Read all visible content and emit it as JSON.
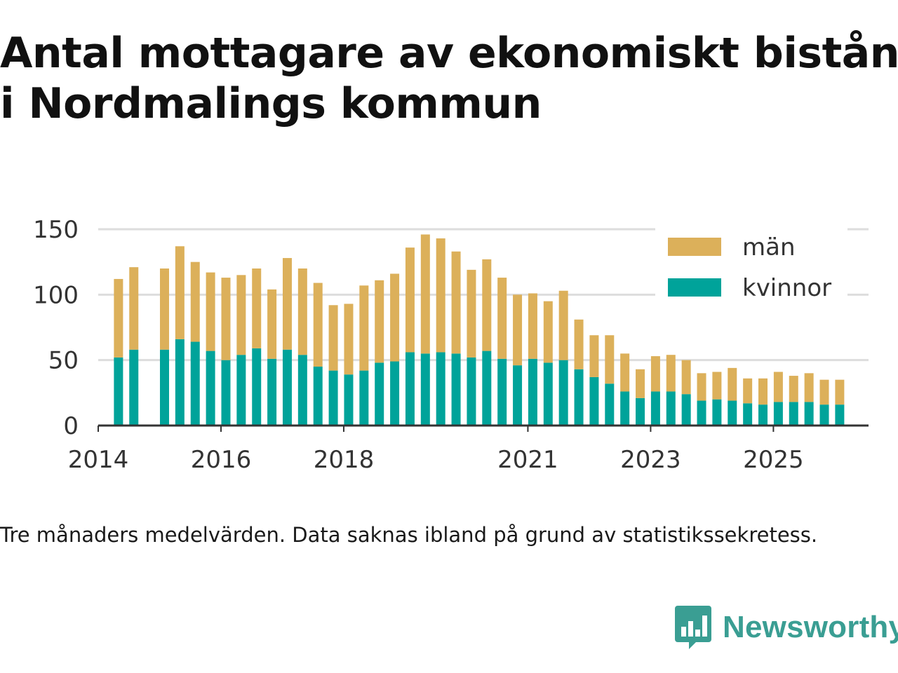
{
  "title": {
    "line1": "Antal mottagare av ekonomiskt bistånd",
    "line2": "i Nordmalings kommun"
  },
  "note": "Tre månaders medelvärden. Data saknas ibland på grund av statistikssekretess.",
  "brand": {
    "name": "Newsworthy",
    "icon": "newsworthy-logo-icon",
    "color": "#3a9e93"
  },
  "colors": {
    "men": "#dcb05a",
    "women": "#00a39a",
    "grid": "#dddddd",
    "axis": "#333333"
  },
  "chart_data": {
    "type": "bar",
    "stacked": true,
    "title": "Antal mottagare av ekonomiskt bistånd i Nordmalings kommun",
    "xlabel": "",
    "ylabel": "",
    "ylim": [
      0,
      150
    ],
    "yticks": [
      0,
      50,
      100,
      150
    ],
    "xlim": [
      2014.0,
      2026.55
    ],
    "xticks": [
      {
        "value": 2014,
        "label": "2014"
      },
      {
        "value": 2016,
        "label": "2016"
      },
      {
        "value": 2018,
        "label": "2018"
      },
      {
        "value": 2021,
        "label": "2021"
      },
      {
        "value": 2023,
        "label": "2023"
      },
      {
        "value": 2025,
        "label": "2025"
      }
    ],
    "grid": true,
    "legend": {
      "position": "top-right",
      "entries": [
        "män",
        "kvinnor"
      ]
    },
    "x": [
      2014.33,
      2014.58,
      2015.08,
      2015.33,
      2015.58,
      2015.83,
      2016.08,
      2016.33,
      2016.58,
      2016.83,
      2017.08,
      2017.33,
      2017.58,
      2017.83,
      2018.08,
      2018.33,
      2018.58,
      2018.83,
      2019.08,
      2019.33,
      2019.58,
      2019.83,
      2020.08,
      2020.33,
      2020.58,
      2020.83,
      2021.08,
      2021.33,
      2021.58,
      2021.83,
      2022.08,
      2022.33,
      2022.58,
      2022.83,
      2023.08,
      2023.33,
      2023.58,
      2023.83,
      2024.08,
      2024.33,
      2024.58,
      2024.83,
      2025.08,
      2025.33,
      2025.58,
      2025.83,
      2026.08
    ],
    "series": [
      {
        "name": "kvinnor",
        "values": [
          52,
          58,
          58,
          66,
          64,
          57,
          50,
          54,
          59,
          51,
          58,
          54,
          45,
          42,
          39,
          42,
          48,
          49,
          56,
          55,
          56,
          55,
          52,
          57,
          51,
          46,
          51,
          48,
          50,
          43,
          37,
          32,
          26,
          21,
          26,
          26,
          24,
          19,
          20,
          19,
          17,
          16,
          18,
          18,
          18,
          16,
          16
        ]
      },
      {
        "name": "män",
        "values": [
          60,
          63,
          62,
          71,
          61,
          60,
          63,
          61,
          61,
          53,
          70,
          66,
          64,
          50,
          54,
          65,
          63,
          67,
          80,
          91,
          87,
          78,
          67,
          70,
          62,
          54,
          50,
          47,
          53,
          38,
          32,
          37,
          29,
          22,
          27,
          28,
          26,
          21,
          21,
          25,
          19,
          20,
          23,
          20,
          22,
          19,
          19
        ]
      }
    ]
  }
}
